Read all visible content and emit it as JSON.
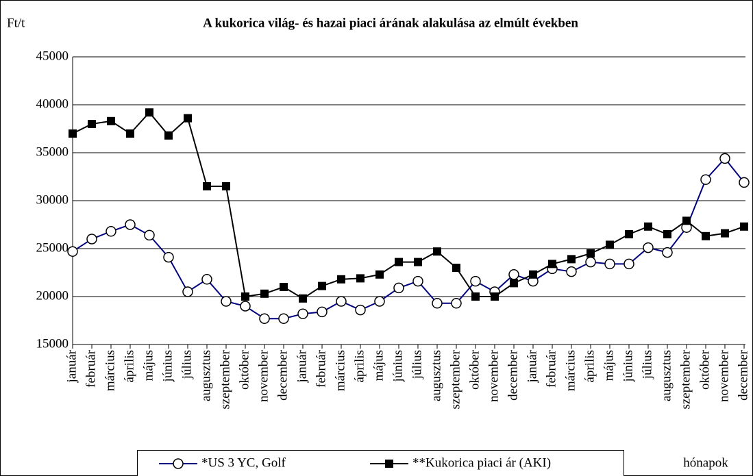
{
  "chart_data": {
    "type": "line",
    "title": "A kukorica világ- és hazai piaci árának alakulása az elmúlt években",
    "y_label": "Ft/t",
    "x_label": "hónapok",
    "categories": [
      "január",
      "február",
      "március",
      "április",
      "május",
      "június",
      "július",
      "augusztus",
      "szeptember",
      "október",
      "november",
      "december",
      "január",
      "február",
      "március",
      "április",
      "május",
      "június",
      "július",
      "augusztus",
      "szeptember",
      "október",
      "november",
      "december",
      "január",
      "február",
      "március",
      "április",
      "május",
      "június",
      "július",
      "augusztus",
      "szeptember",
      "október",
      "november",
      "december"
    ],
    "series": [
      {
        "name": "*US 3 YC, Golf",
        "color": "#000080",
        "marker": "circle",
        "values": [
          24700,
          26000,
          26800,
          27500,
          26400,
          24100,
          20500,
          21800,
          19500,
          19000,
          17700,
          17700,
          18200,
          18400,
          19500,
          18600,
          19500,
          20900,
          21600,
          19300,
          19300,
          21600,
          20500,
          22300,
          21600,
          22900,
          22600,
          23600,
          23400,
          23400,
          25100,
          24600,
          27200,
          32200,
          34400,
          31900
        ]
      },
      {
        "name": "**Kukorica piaci ár (AKI)",
        "color": "#000000",
        "marker": "square",
        "values": [
          37000,
          38000,
          38300,
          37000,
          39200,
          36800,
          38600,
          31500,
          31500,
          20000,
          20300,
          21000,
          19800,
          21100,
          21800,
          21900,
          22300,
          23600,
          23600,
          24700,
          23000,
          20000,
          20000,
          21400,
          22300,
          23400,
          23900,
          24500,
          25400,
          26500,
          27300,
          26500,
          27900,
          26300,
          26600,
          27300
        ]
      }
    ],
    "ylim": [
      15000,
      45000
    ],
    "yticks": [
      15000,
      20000,
      25000,
      30000,
      35000,
      40000,
      45000
    ],
    "grid": true,
    "legend": "bottom"
  }
}
